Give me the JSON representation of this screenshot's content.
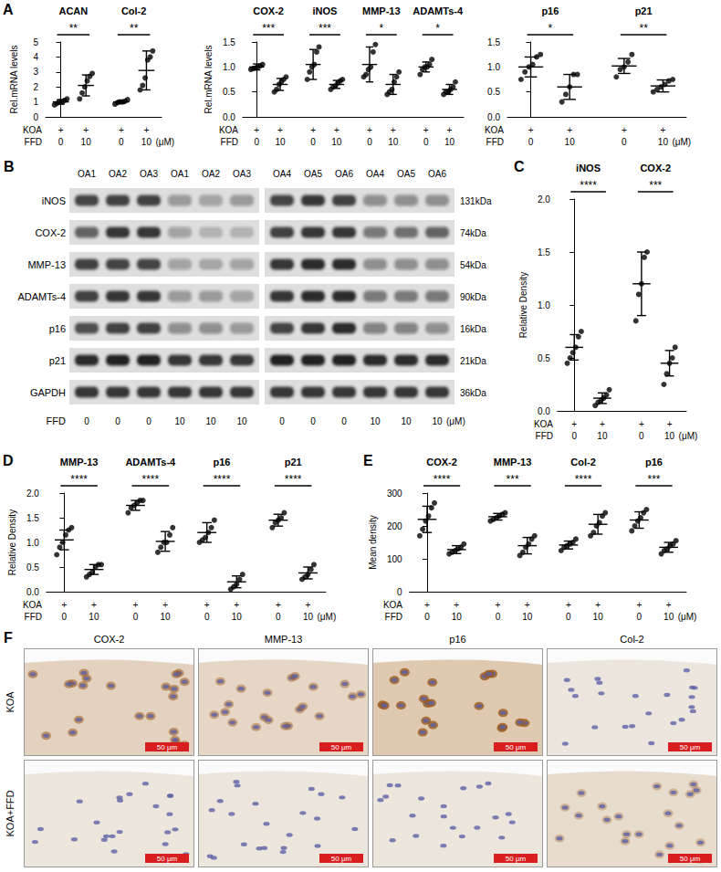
{
  "chart_data": [
    {
      "type": "scatter",
      "panel": "A",
      "y_label": "Rel.mRNA levels",
      "categories": [
        "ACAN",
        "Col-2"
      ],
      "x_rows": [
        {
          "label": "KOA",
          "values": [
            "+",
            "+",
            "+",
            "+"
          ]
        },
        {
          "label": "FFD",
          "values": [
            "0",
            "10",
            "0",
            "10"
          ]
        }
      ],
      "x_unit": "(μM)",
      "points": [
        [
          0.8,
          0.9,
          1.0,
          1.0,
          1.1,
          1.2
        ],
        [
          1.2,
          1.6,
          2.0,
          2.4,
          2.7,
          2.9
        ],
        [
          0.85,
          0.95,
          1.0,
          1.0,
          1.05,
          1.15
        ],
        [
          1.8,
          2.1,
          2.6,
          3.8,
          4.0,
          4.4
        ]
      ],
      "mean": [
        1.0,
        2.1,
        1.0,
        3.1
      ],
      "sd": [
        0.15,
        0.7,
        0.1,
        1.3
      ],
      "significance": [
        "**",
        "**"
      ],
      "ylim": [
        0,
        5
      ],
      "yticks": [
        0,
        1,
        2,
        3,
        4,
        5
      ],
      "color": "#000000",
      "marker": "circle",
      "grid": false
    },
    {
      "type": "scatter",
      "y_label": "Rel.mRNA levels",
      "categories": [
        "COX-2",
        "iNOS",
        "MMP-13",
        "ADAMTs-4"
      ],
      "x_rows": [
        {
          "label": "KOA",
          "values": [
            "+",
            "+",
            "+",
            "+",
            "+",
            "+",
            "+",
            "+"
          ]
        },
        {
          "label": "FFD",
          "values": [
            "0",
            "10",
            "0",
            "10",
            "0",
            "10",
            "0",
            "10"
          ]
        }
      ],
      "points": [
        [
          0.95,
          0.97,
          0.98,
          1.0,
          1.02,
          1.05
        ],
        [
          0.5,
          0.55,
          0.65,
          0.7,
          0.75,
          0.8
        ],
        [
          0.75,
          0.9,
          1.0,
          1.05,
          1.3,
          1.4
        ],
        [
          0.55,
          0.6,
          0.62,
          0.68,
          0.72,
          0.75
        ],
        [
          0.8,
          0.85,
          0.95,
          1.0,
          1.3,
          1.45
        ],
        [
          0.45,
          0.5,
          0.55,
          0.7,
          0.8,
          0.9
        ],
        [
          0.85,
          0.95,
          1.0,
          1.0,
          1.05,
          1.15
        ],
        [
          0.45,
          0.5,
          0.5,
          0.55,
          0.6,
          0.7
        ]
      ],
      "mean": [
        1.0,
        0.65,
        1.05,
        0.65,
        1.05,
        0.65,
        1.0,
        0.55
      ],
      "sd": [
        0.06,
        0.12,
        0.3,
        0.08,
        0.35,
        0.2,
        0.1,
        0.1
      ],
      "significance": [
        "***",
        "***",
        "*",
        "*"
      ],
      "ylim": [
        0,
        1.5
      ],
      "yticks": [
        {
          "value": 0,
          "label": "0.0"
        },
        0.5,
        {
          "value": 1,
          "label": "1.0"
        },
        1.5
      ],
      "color": "#000000",
      "marker": "circle",
      "grid": false
    },
    {
      "type": "scatter",
      "categories": [
        "p16",
        "p21"
      ],
      "x_rows": [
        {
          "label": "KOA",
          "values": [
            "+",
            "+",
            "+",
            "+"
          ]
        },
        {
          "label": "FFD",
          "values": [
            "0",
            "10",
            "0",
            "10"
          ]
        }
      ],
      "x_unit": "(μM)",
      "points": [
        [
          0.75,
          0.9,
          1.0,
          1.05,
          1.2,
          1.25
        ],
        [
          0.3,
          0.45,
          0.6,
          0.85,
          0.85
        ],
        [
          0.8,
          0.95,
          1.0,
          1.1,
          1.25
        ],
        [
          0.5,
          0.55,
          0.6,
          0.65,
          0.72,
          0.75
        ]
      ],
      "mean": [
        1.0,
        0.6,
        1.02,
        0.62
      ],
      "sd": [
        0.2,
        0.25,
        0.15,
        0.12
      ],
      "significance": [
        "*",
        "**"
      ],
      "ylim": [
        0,
        1.5
      ],
      "yticks": [
        {
          "value": 0,
          "label": "0.0"
        },
        0.5,
        {
          "value": 1,
          "label": "1.0"
        },
        1.5
      ],
      "color": "#000000",
      "marker": "circle",
      "grid": false
    },
    {
      "type": "scatter",
      "panel": "C",
      "y_label": "Relative Density",
      "categories": [
        "iNOS",
        "COX-2"
      ],
      "x_rows": [
        {
          "label": "KOA",
          "values": [
            "+",
            "+",
            "+",
            "+"
          ]
        },
        {
          "label": "FFD",
          "values": [
            "0",
            "10",
            "0",
            "10"
          ]
        }
      ],
      "x_unit": "(μM)",
      "points": [
        [
          0.45,
          0.5,
          0.55,
          0.6,
          0.7,
          0.75
        ],
        [
          0.05,
          0.08,
          0.1,
          0.12,
          0.15,
          0.2
        ],
        [
          0.85,
          1.1,
          1.2,
          1.45,
          1.5
        ],
        [
          0.25,
          0.35,
          0.45,
          0.5,
          0.6
        ]
      ],
      "mean": [
        0.6,
        0.12,
        1.2,
        0.45
      ],
      "sd": [
        0.12,
        0.05,
        0.3,
        0.12
      ],
      "significance": [
        "****",
        "***"
      ],
      "ylim": [
        0,
        2
      ],
      "yticks": [
        {
          "value": 0,
          "label": "0.0"
        },
        0.5,
        {
          "value": 1,
          "label": "1.0"
        },
        1.5,
        {
          "value": 2,
          "label": "2.0"
        }
      ],
      "color": "#000000",
      "marker": "circle",
      "grid": false
    },
    {
      "type": "scatter",
      "panel": "D",
      "y_label": "Relative Density",
      "categories": [
        "MMP-13",
        "ADAMTs-4",
        "p16",
        "p21"
      ],
      "x_rows": [
        {
          "label": "KOA",
          "values": [
            "+",
            "+",
            "+",
            "+",
            "+",
            "+",
            "+",
            "+"
          ]
        },
        {
          "label": "FFD",
          "values": [
            "0",
            "10",
            "0",
            "10",
            "0",
            "10",
            "0",
            "10"
          ]
        }
      ],
      "x_unit": "(μM)",
      "points": [
        [
          0.75,
          0.9,
          1.0,
          1.15,
          1.25,
          1.3
        ],
        [
          0.3,
          0.35,
          0.4,
          0.5,
          0.55,
          0.55
        ],
        [
          1.6,
          1.7,
          1.75,
          1.8,
          1.85,
          1.85
        ],
        [
          0.8,
          0.9,
          1.0,
          1.0,
          1.15,
          1.3
        ],
        [
          1.0,
          1.05,
          1.1,
          1.2,
          1.3,
          1.45
        ],
        [
          0.05,
          0.1,
          0.15,
          0.25,
          0.35
        ],
        [
          1.3,
          1.4,
          1.45,
          1.5,
          1.6
        ],
        [
          0.25,
          0.3,
          0.35,
          0.45,
          0.55
        ]
      ],
      "mean": [
        1.05,
        0.45,
        1.75,
        1.02,
        1.2,
        0.2,
        1.45,
        0.38
      ],
      "sd": [
        0.2,
        0.1,
        0.1,
        0.2,
        0.2,
        0.12,
        0.12,
        0.12
      ],
      "significance": [
        "****",
        "****",
        "****",
        "****"
      ],
      "ylim": [
        0,
        2
      ],
      "yticks": [
        {
          "value": 0,
          "label": "0.0"
        },
        0.5,
        {
          "value": 1,
          "label": "1.0"
        },
        1.5,
        {
          "value": 2,
          "label": "2.0"
        }
      ],
      "color": "#000000",
      "marker": "circle",
      "grid": false
    },
    {
      "type": "scatter",
      "panel": "E",
      "y_label": "Mean density",
      "categories": [
        "COX-2",
        "MMP-13",
        "Col-2",
        "p16"
      ],
      "x_rows": [
        {
          "label": "KOA",
          "values": [
            "+",
            "+",
            "+",
            "+",
            "+",
            "+",
            "+",
            "+"
          ]
        },
        {
          "label": "FFD",
          "values": [
            "0",
            "10",
            "0",
            "10",
            "0",
            "10",
            "0",
            "10"
          ]
        }
      ],
      "x_unit": "(μM)",
      "points": [
        [
          170,
          190,
          215,
          230,
          255,
          270
        ],
        [
          115,
          120,
          125,
          130,
          135,
          145
        ],
        [
          215,
          220,
          225,
          230,
          235,
          240
        ],
        [
          110,
          120,
          135,
          145,
          160,
          170
        ],
        [
          125,
          135,
          140,
          145,
          150,
          160
        ],
        [
          170,
          180,
          200,
          210,
          230,
          240
        ],
        [
          185,
          200,
          215,
          225,
          240,
          250
        ],
        [
          115,
          125,
          130,
          140,
          145,
          155
        ]
      ],
      "mean": [
        220,
        128,
        228,
        140,
        142,
        205,
        218,
        135
      ],
      "sd": [
        40,
        12,
        10,
        25,
        12,
        30,
        25,
        15
      ],
      "significance": [
        "****",
        "***",
        "****",
        "***"
      ],
      "ylim": [
        0,
        300
      ],
      "yticks": [
        0,
        100,
        200,
        300
      ],
      "color": "#000000",
      "marker": "circle",
      "grid": false
    }
  ],
  "blot": {
    "panel": "B",
    "lanes": [
      [
        "OA1",
        "OA2",
        "OA3",
        "OA1",
        "OA2",
        "OA3"
      ],
      [
        "OA4",
        "OA5",
        "OA6",
        "OA4",
        "OA5",
        "OA6"
      ]
    ],
    "rows": [
      {
        "label": "iNOS",
        "size": "131kDa",
        "intensity": [
          [
            0.75,
            0.8,
            0.8,
            0.35,
            0.3,
            0.35
          ],
          [
            0.75,
            0.85,
            0.8,
            0.4,
            0.4,
            0.4
          ]
        ]
      },
      {
        "label": "COX-2",
        "size": "74kDa",
        "intensity": [
          [
            0.6,
            0.85,
            0.85,
            0.3,
            0.2,
            0.2
          ],
          [
            0.8,
            0.85,
            0.85,
            0.5,
            0.55,
            0.6
          ]
        ]
      },
      {
        "label": "MMP-13",
        "size": "54kDa",
        "intensity": [
          [
            0.8,
            0.75,
            0.75,
            0.3,
            0.25,
            0.3
          ],
          [
            0.85,
            0.9,
            0.9,
            0.4,
            0.4,
            0.4
          ]
        ]
      },
      {
        "label": "ADAMTs-4",
        "size": "90kDa",
        "intensity": [
          [
            0.8,
            0.85,
            0.85,
            0.35,
            0.35,
            0.3
          ],
          [
            0.85,
            0.9,
            0.9,
            0.5,
            0.5,
            0.5
          ]
        ]
      },
      {
        "label": "p16",
        "size": "16kDa",
        "intensity": [
          [
            0.7,
            0.8,
            0.8,
            0.4,
            0.4,
            0.35
          ],
          [
            0.75,
            0.85,
            0.9,
            0.45,
            0.45,
            0.4
          ]
        ]
      },
      {
        "label": "p21",
        "size": "21kDa",
        "intensity": [
          [
            0.9,
            0.95,
            0.95,
            0.85,
            0.85,
            0.85
          ],
          [
            0.95,
            0.95,
            0.95,
            0.9,
            0.9,
            0.9
          ]
        ]
      },
      {
        "label": "GAPDH",
        "size": "36kDa",
        "intensity": [
          [
            0.85,
            0.85,
            0.85,
            0.85,
            0.85,
            0.85
          ],
          [
            0.85,
            0.85,
            0.85,
            0.85,
            0.85,
            0.85
          ]
        ]
      }
    ],
    "dose_label": "FFD",
    "doses": [
      [
        "0",
        "0",
        "0",
        "10",
        "10",
        "10"
      ],
      [
        "0",
        "0",
        "0",
        "10",
        "10",
        "10"
      ]
    ],
    "unit": "(μM)"
  },
  "ihc": {
    "panel": "F",
    "columns": [
      "COX-2",
      "MMP-13",
      "p16",
      "Col-2"
    ],
    "rows": [
      {
        "label": "KOA",
        "stain": [
          0.55,
          0.45,
          0.8,
          0.03
        ]
      },
      {
        "label": "KOA+FFD",
        "stain": [
          0.04,
          0.04,
          0.04,
          0.3
        ]
      }
    ],
    "scale_bar": "50 μm"
  }
}
